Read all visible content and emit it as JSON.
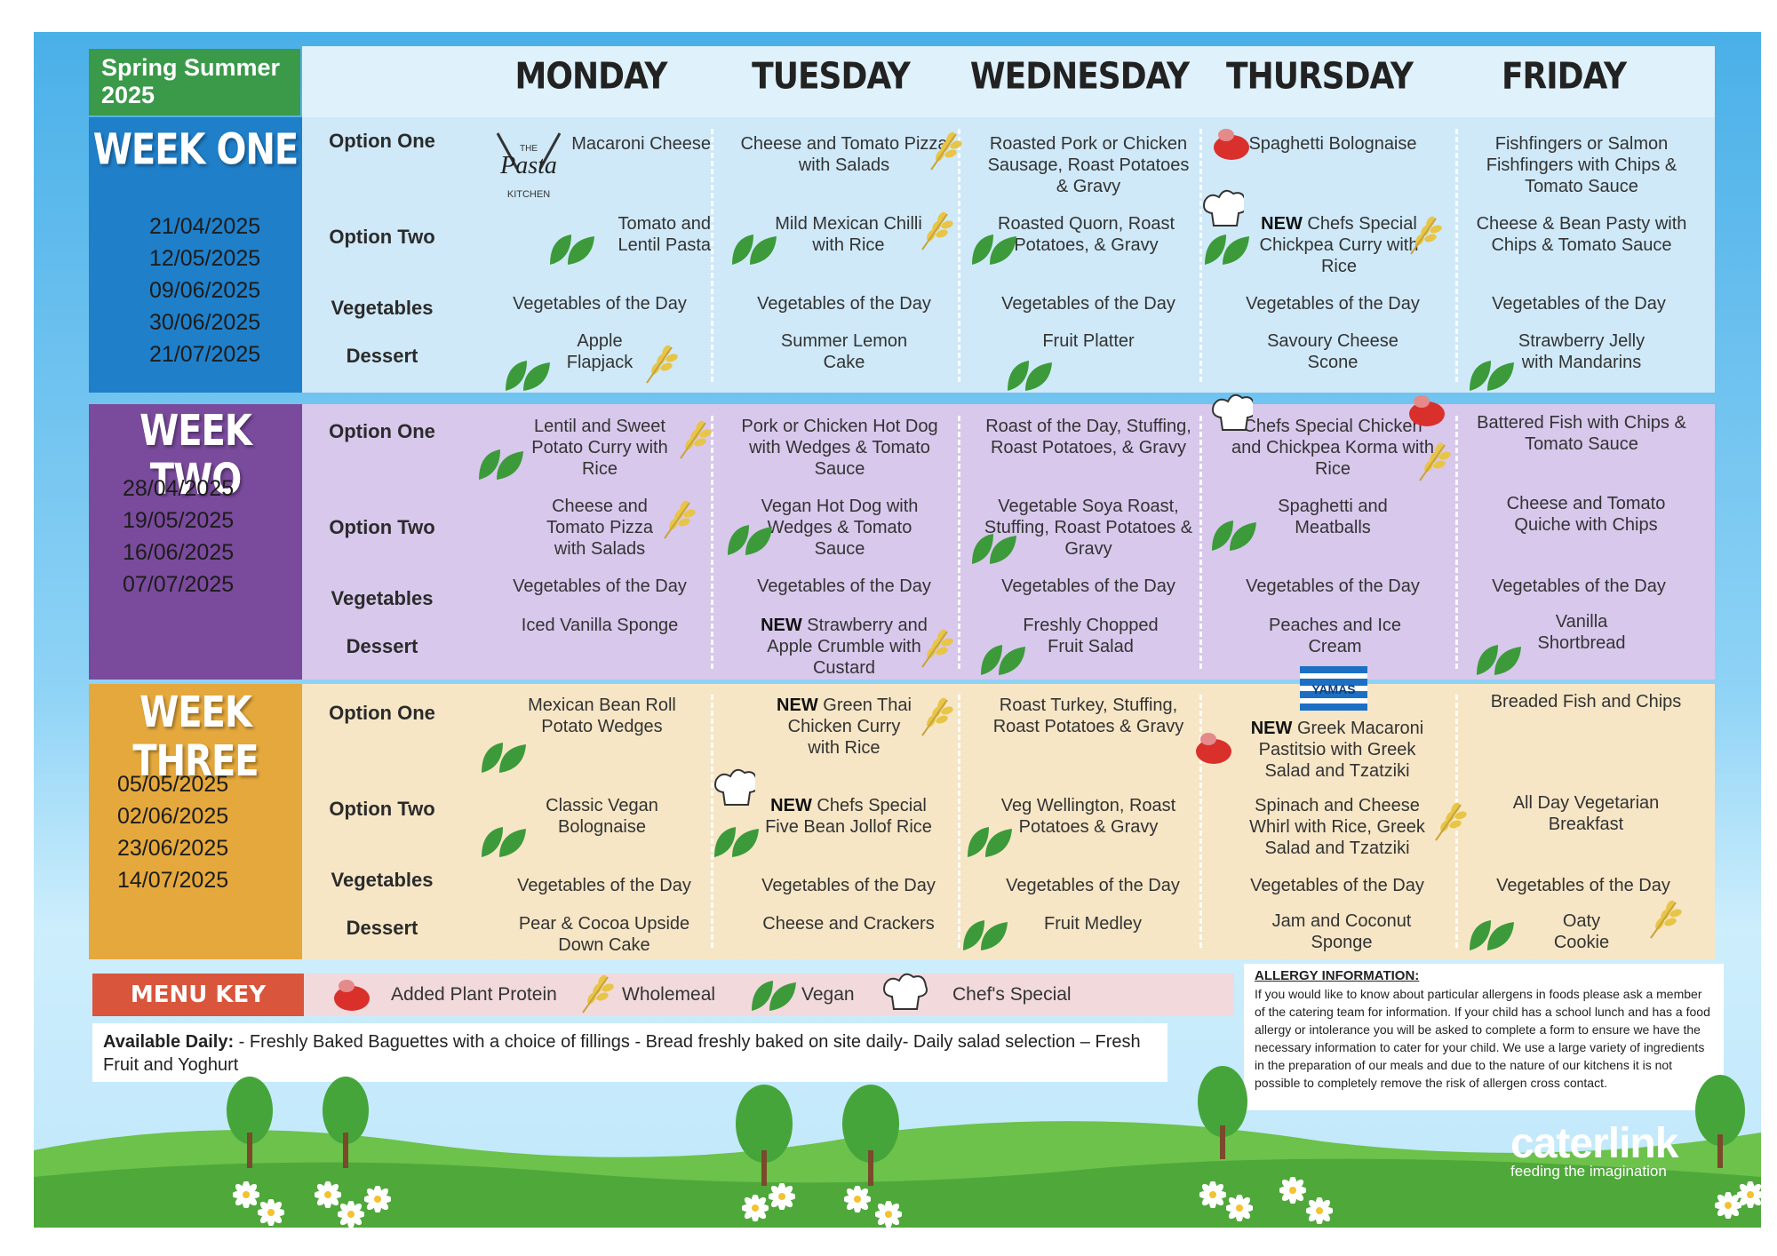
{
  "season": "Spring Summer 2025",
  "days": [
    "MONDAY",
    "TUESDAY",
    "WEDNESDAY",
    "THURSDAY",
    "FRIDAY"
  ],
  "row_labels": [
    "Option One",
    "Option Two",
    "Vegetables",
    "Dessert"
  ],
  "weeks": [
    {
      "title": "WEEK ONE",
      "dates": [
        "21/04/2025",
        "12/05/2025",
        "09/06/2025",
        "30/06/2025",
        "21/07/2025"
      ],
      "cells": [
        [
          "Macaroni Cheese",
          "Cheese and Tomato Pizza with Salads",
          "Roasted Pork or Chicken Sausage, Roast Potatoes & Gravy",
          "Spaghetti Bolognaise",
          "Fishfingers or Salmon Fishfingers with Chips & Tomato Sauce"
        ],
        [
          "Tomato and Lentil Pasta",
          "Mild Mexican Chilli with Rice",
          "Roasted Quorn, Roast Potatoes, & Gravy",
          "NEW Chefs Special Chickpea Curry with Rice",
          "Cheese & Bean Pasty with Chips & Tomato Sauce"
        ],
        [
          "Vegetables of the Day",
          "Vegetables of the Day",
          "Vegetables of the Day",
          "Vegetables of the Day",
          "Vegetables of the Day"
        ],
        [
          "Apple Flapjack",
          "Summer Lemon Cake",
          "Fruit Platter",
          "Savoury Cheese Scone",
          "Strawberry Jelly with Mandarins"
        ]
      ]
    },
    {
      "title": "WEEK TWO",
      "dates": [
        "28/04/2025",
        "19/05/2025",
        "16/06/2025",
        "07/07/2025"
      ],
      "cells": [
        [
          "Lentil and Sweet Potato Curry with Rice",
          "Pork or Chicken Hot Dog with Wedges & Tomato Sauce",
          "Roast of the Day, Stuffing, Roast Potatoes, & Gravy",
          "Chefs Special Chicken and Chickpea Korma with Rice",
          "Battered Fish with Chips & Tomato Sauce"
        ],
        [
          "Cheese and Tomato Pizza with Salads",
          "Vegan Hot Dog with Wedges & Tomato Sauce",
          "Vegetable Soya Roast, Stuffing, Roast Potatoes & Gravy",
          "Spaghetti and Meatballs",
          "Cheese and Tomato Quiche with Chips"
        ],
        [
          "Vegetables of the Day",
          "Vegetables of the Day",
          "Vegetables of the Day",
          "Vegetables of the Day",
          "Vegetables of the Day"
        ],
        [
          "Iced Vanilla Sponge",
          "NEW Strawberry and Apple Crumble with Custard",
          "Freshly Chopped Fruit Salad",
          "Peaches and Ice Cream",
          "Vanilla Shortbread"
        ]
      ]
    },
    {
      "title": "WEEK THREE",
      "dates": [
        "05/05/2025",
        "02/06/2025",
        "23/06/2025",
        "14/07/2025"
      ],
      "cells": [
        [
          "Mexican Bean Roll Potato Wedges",
          "NEW Green Thai Chicken Curry with Rice",
          "Roast Turkey, Stuffing, Roast Potatoes & Gravy",
          "NEW Greek Macaroni Pastitsio with Greek Salad and Tzatziki",
          "Breaded Fish and Chips"
        ],
        [
          "Classic Vegan Bolognaise",
          "NEW Chefs Special Five Bean Jollof Rice",
          "Veg Wellington, Roast Potatoes & Gravy",
          "Spinach and Cheese Whirl with Rice, Greek Salad and Tzatziki",
          "All Day Vegetarian Breakfast"
        ],
        [
          "Vegetables of the Day",
          "Vegetables of the Day",
          "Vegetables of the Day",
          "Vegetables of the Day",
          "Vegetables of the Day"
        ],
        [
          "Pear & Cocoa Upside Down Cake",
          "Cheese and Crackers",
          "Fruit Medley",
          "Jam and Coconut Sponge",
          "Oaty Cookie"
        ]
      ]
    }
  ],
  "pasta_logo": {
    "line1": "THE",
    "line2": "Pasta",
    "line3": "KITCHEN"
  },
  "greek_flag_text": "YAMAS",
  "menu_key": {
    "label": "MENU KEY",
    "items": [
      "Added Plant Protein",
      "Wholemeal",
      "Vegan",
      "Chef's Special"
    ]
  },
  "available_daily": {
    "label": "Available Daily:",
    "text": " - Freshly Baked Baguettes with a choice of fillings - Bread freshly baked on site daily- Daily salad selection – Fresh Fruit and Yoghurt"
  },
  "allergy": {
    "heading": "ALLERGY INFORMATION:",
    "text": "If you would like to know about particular allergens in foods please ask a member of the catering team for information. If your child has a school lunch and has a food allergy or intolerance you will be asked to complete a form to ensure we have the necessary information to cater for your child. We use a large variety of ingredients in the preparation of our meals and due to the nature of our kitchens it is not possible to completely remove the risk of allergen cross contact."
  },
  "brand": {
    "name": "caterlink",
    "tagline": "feeding the imagination"
  },
  "colors": {
    "week_one": "#1f7fc9",
    "week_two": "#7a4a9c",
    "week_three": "#e5a83c",
    "season_bg": "#3a9a4a",
    "key_bg": "#d9553b"
  }
}
